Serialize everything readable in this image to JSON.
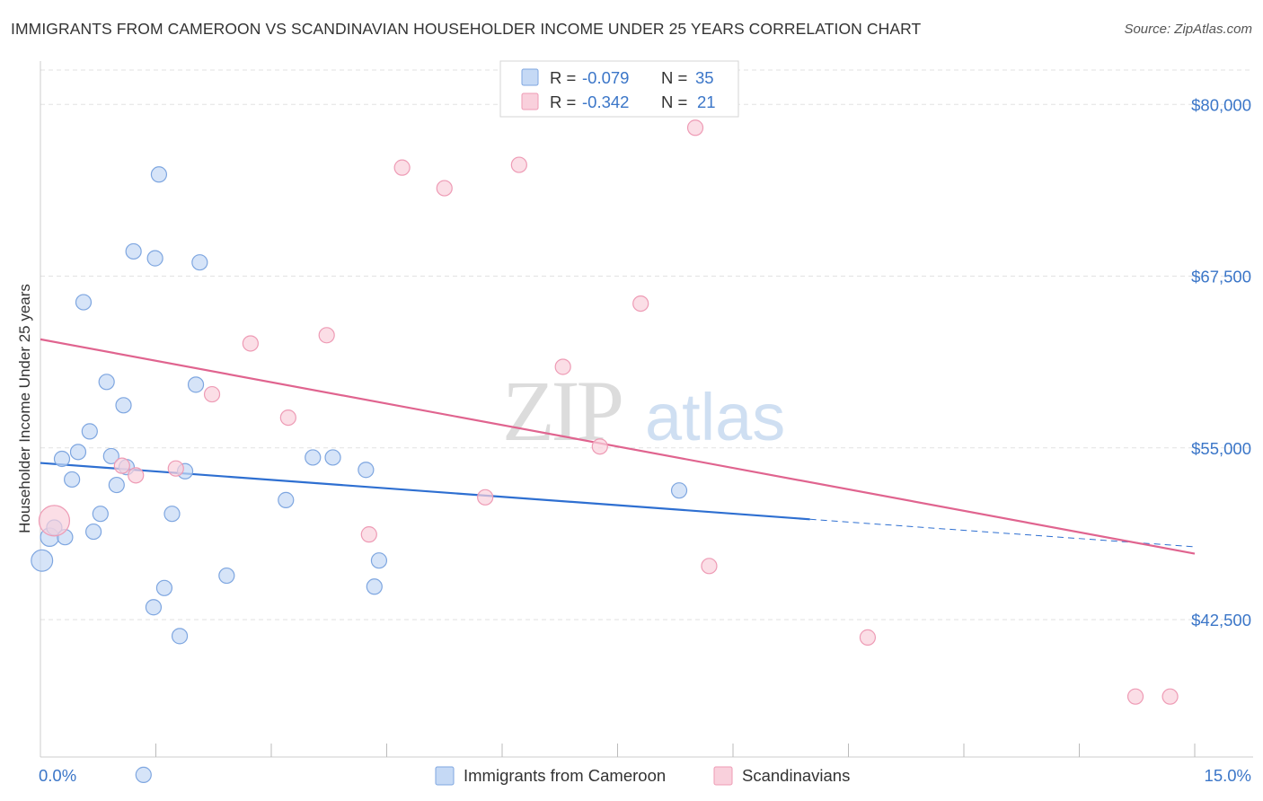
{
  "title": "IMMIGRANTS FROM CAMEROON VS SCANDINAVIAN HOUSEHOLDER INCOME UNDER 25 YEARS CORRELATION CHART",
  "source": "Source: ZipAtlas.com",
  "watermark": {
    "zip": "ZIP",
    "atlas": "atlas"
  },
  "colors": {
    "blue_fill": "#c5d9f5",
    "blue_stroke": "#7ea6e0",
    "blue_line": "#2e6fd1",
    "pink_fill": "#f9d0dc",
    "pink_stroke": "#ee9bb5",
    "pink_line": "#e0648f",
    "tick_label": "#3b76c8",
    "grid": "#e2e2e2"
  },
  "legend": {
    "rows": [
      {
        "r_label": "R = ",
        "r_value": "-0.079",
        "n_label": "N = ",
        "n_value": "35",
        "series": "blue"
      },
      {
        "r_label": "R = ",
        "r_value": "-0.342",
        "n_label": "N = ",
        "n_value": "21",
        "series": "pink"
      }
    ]
  },
  "chart_data": {
    "type": "scatter",
    "title": "IMMIGRANTS FROM CAMEROON VS SCANDINAVIAN HOUSEHOLDER INCOME UNDER 25 YEARS CORRELATION CHART",
    "xlabel": "",
    "ylabel": "Householder Income Under 25 years",
    "xlim": [
      0,
      15
    ],
    "ylim": [
      32500,
      82500
    ],
    "x_tick_labels": [
      {
        "value": 0,
        "label": "0.0%"
      },
      {
        "value": 15,
        "label": "15.0%"
      }
    ],
    "x_minor_ticks": [
      1.5,
      3,
      4.5,
      6,
      7.5,
      9,
      10.5,
      12,
      13.5,
      15
    ],
    "y_ticks": [
      {
        "value": 42500,
        "label": "$42,500"
      },
      {
        "value": 55000,
        "label": "$55,000"
      },
      {
        "value": 67500,
        "label": "$67,500"
      },
      {
        "value": 80000,
        "label": "$80,000"
      }
    ],
    "series": [
      {
        "name": "Immigrants from Cameroon",
        "color": "blue",
        "points": [
          {
            "x": 0.02,
            "y": 46800,
            "size": 1.4
          },
          {
            "x": 0.12,
            "y": 48500,
            "size": 1.2
          },
          {
            "x": 0.18,
            "y": 49200
          },
          {
            "x": 0.28,
            "y": 54200
          },
          {
            "x": 0.32,
            "y": 48500
          },
          {
            "x": 0.41,
            "y": 52700
          },
          {
            "x": 0.49,
            "y": 54700
          },
          {
            "x": 0.56,
            "y": 65600
          },
          {
            "x": 0.64,
            "y": 56200
          },
          {
            "x": 0.69,
            "y": 48900
          },
          {
            "x": 0.78,
            "y": 50200
          },
          {
            "x": 0.86,
            "y": 59800
          },
          {
            "x": 0.92,
            "y": 54400
          },
          {
            "x": 0.99,
            "y": 52300
          },
          {
            "x": 1.08,
            "y": 58100
          },
          {
            "x": 1.12,
            "y": 53600
          },
          {
            "x": 1.21,
            "y": 69300
          },
          {
            "x": 1.34,
            "y": 31200
          },
          {
            "x": 1.47,
            "y": 43400
          },
          {
            "x": 1.49,
            "y": 68800
          },
          {
            "x": 1.54,
            "y": 74900
          },
          {
            "x": 1.61,
            "y": 44800
          },
          {
            "x": 1.71,
            "y": 50200
          },
          {
            "x": 1.81,
            "y": 41300
          },
          {
            "x": 1.88,
            "y": 53300
          },
          {
            "x": 2.02,
            "y": 59600
          },
          {
            "x": 2.07,
            "y": 68500
          },
          {
            "x": 2.42,
            "y": 45700
          },
          {
            "x": 3.19,
            "y": 51200
          },
          {
            "x": 3.54,
            "y": 54300
          },
          {
            "x": 3.8,
            "y": 54300
          },
          {
            "x": 4.23,
            "y": 53400
          },
          {
            "x": 4.34,
            "y": 44900
          },
          {
            "x": 4.4,
            "y": 46800
          },
          {
            "x": 8.3,
            "y": 51900
          }
        ],
        "trendline": {
          "x0": 0,
          "y0": 53900,
          "x1": 10.0,
          "y1": 49800,
          "dashed_to_x": 15.0,
          "dashed_to_y": 47800
        }
      },
      {
        "name": "Scandinavians",
        "color": "pink",
        "points": [
          {
            "x": 0.18,
            "y": 49700,
            "size": 2.0
          },
          {
            "x": 1.06,
            "y": 53700
          },
          {
            "x": 1.24,
            "y": 53000
          },
          {
            "x": 1.76,
            "y": 53500
          },
          {
            "x": 2.23,
            "y": 58900
          },
          {
            "x": 2.73,
            "y": 62600
          },
          {
            "x": 3.22,
            "y": 57200
          },
          {
            "x": 3.72,
            "y": 63200
          },
          {
            "x": 4.27,
            "y": 48700
          },
          {
            "x": 4.7,
            "y": 75400
          },
          {
            "x": 5.25,
            "y": 73900
          },
          {
            "x": 5.78,
            "y": 51400
          },
          {
            "x": 6.22,
            "y": 75600
          },
          {
            "x": 6.79,
            "y": 60900
          },
          {
            "x": 7.27,
            "y": 55100
          },
          {
            "x": 7.8,
            "y": 65500
          },
          {
            "x": 8.51,
            "y": 78300
          },
          {
            "x": 8.69,
            "y": 46400
          },
          {
            "x": 10.75,
            "y": 41200
          },
          {
            "x": 14.23,
            "y": 36900
          },
          {
            "x": 14.68,
            "y": 36900
          }
        ],
        "trendline": {
          "x0": 0,
          "y0": 62900,
          "x1": 15.0,
          "y1": 47300
        }
      }
    ]
  }
}
